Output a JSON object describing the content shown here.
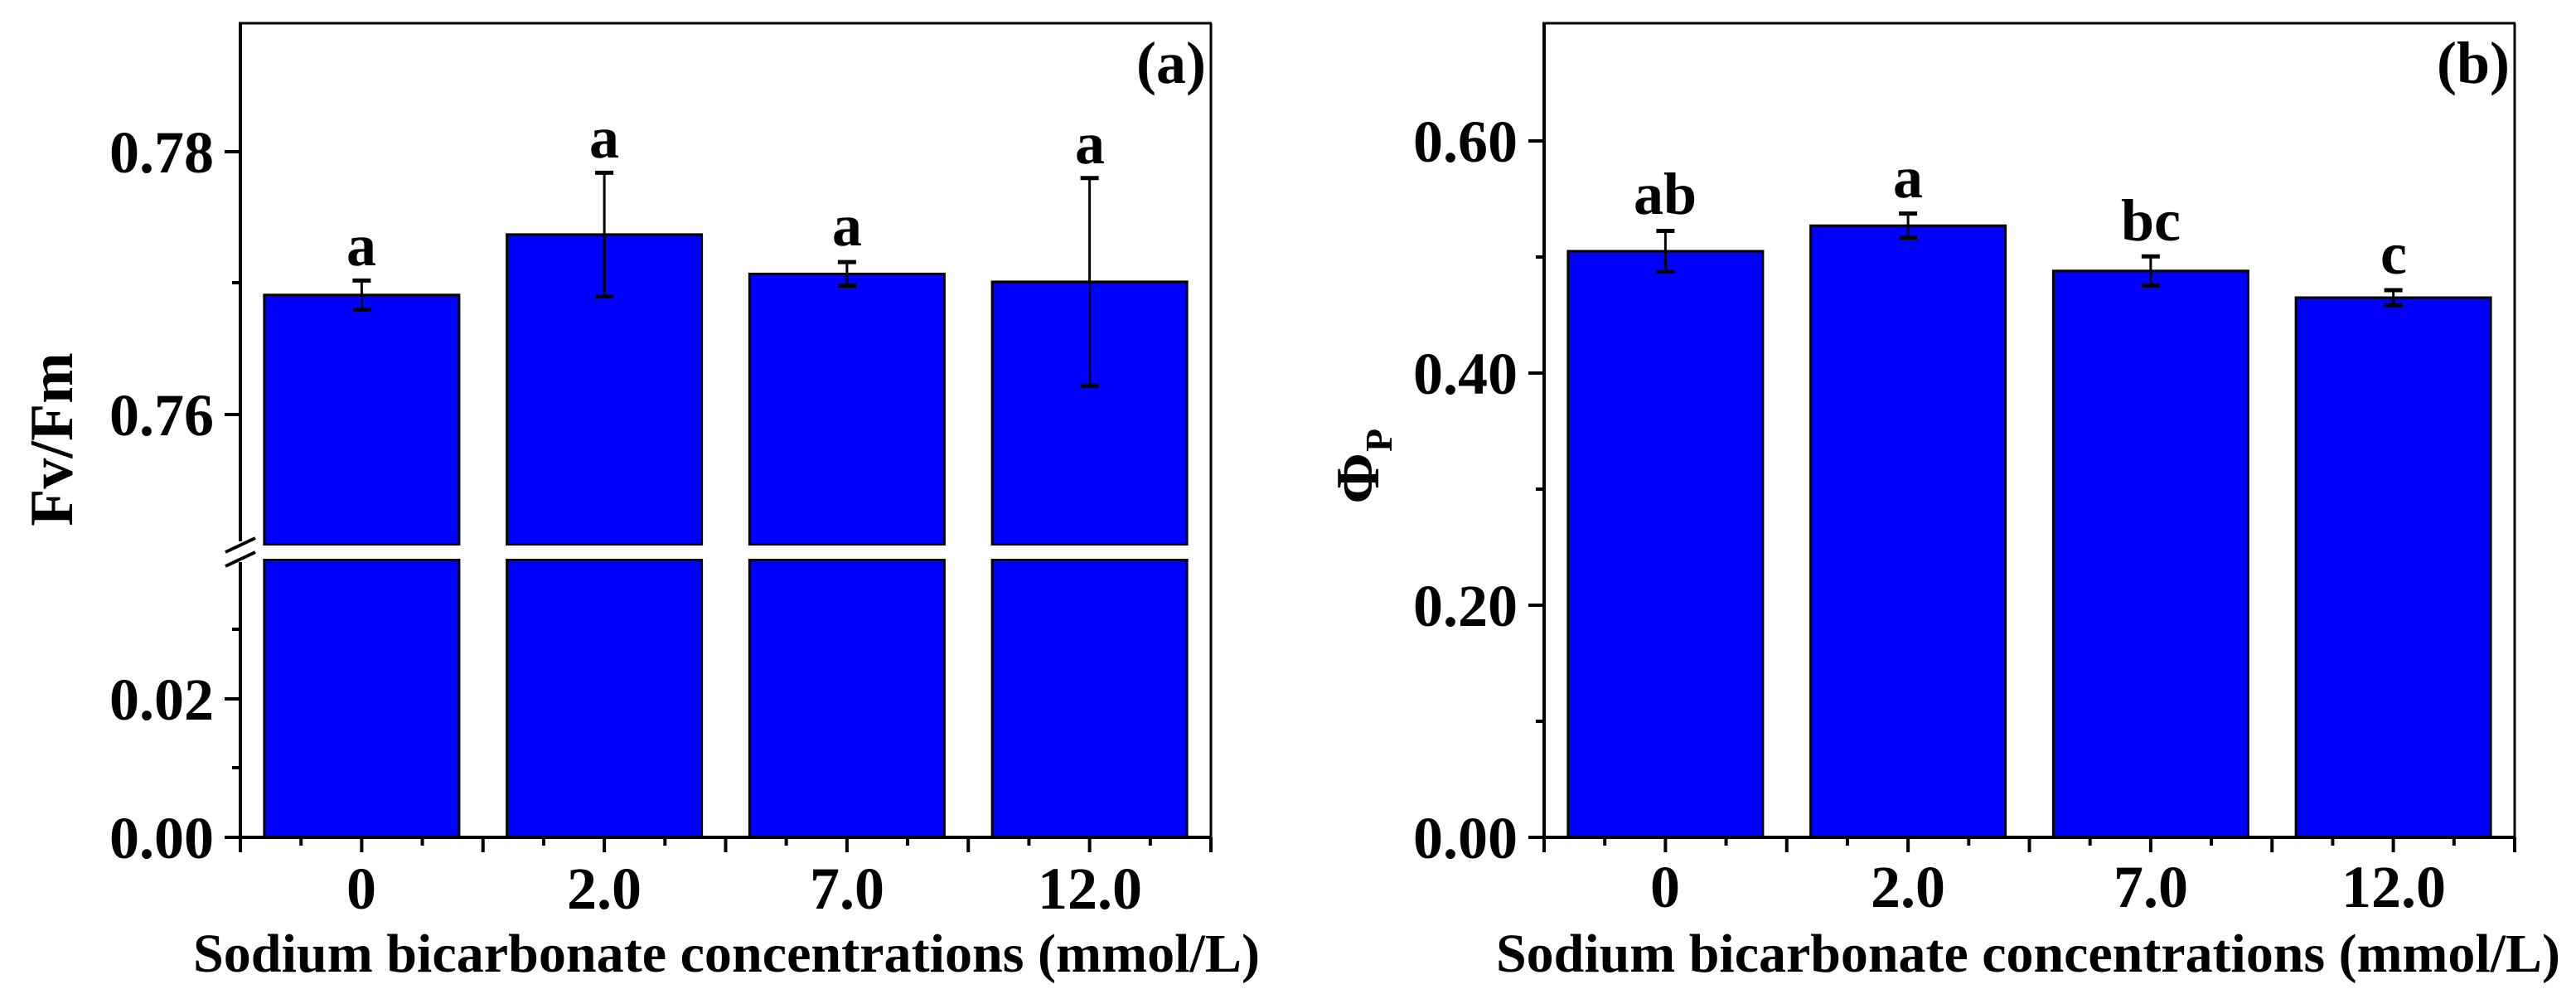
{
  "colors": {
    "bar_fill": "#0000FF",
    "axis": "#000000",
    "background": "#FFFFFF"
  },
  "chart_data": [
    {
      "panel": "(a)",
      "type": "bar",
      "categories": [
        "0",
        "2.0",
        "7.0",
        "12.0"
      ],
      "values": [
        0.7691,
        0.7737,
        0.7707,
        0.7701
      ],
      "errors": [
        0.0011,
        0.0047,
        0.0009,
        0.0079
      ],
      "significance": [
        "a",
        "a",
        "a",
        "a"
      ],
      "xlabel": "Sodium bicarbonate concentrations (mmol/L)",
      "ylabel": "Fv/Fm",
      "y_axis_break": {
        "lower_range": [
          0.0,
          0.04
        ],
        "upper_range": [
          0.75,
          0.79
        ]
      },
      "yticks_labeled": [
        "0.00",
        "0.02",
        "0.76",
        "0.78"
      ],
      "yticks_minor": [
        0.01,
        0.03,
        0.77
      ],
      "grid": false,
      "legend": null
    },
    {
      "panel": "(b)",
      "type": "bar",
      "categories": [
        "0",
        "2.0",
        "7.0",
        "12.0"
      ],
      "values": [
        0.505,
        0.527,
        0.488,
        0.465
      ],
      "errors": [
        0.0175,
        0.0104,
        0.0125,
        0.0064
      ],
      "significance": [
        "ab",
        "a",
        "bc",
        "c"
      ],
      "xlabel": "Sodium bicarbonate concentrations (mmol/L)",
      "ylabel": "ΦP",
      "ylim": [
        0.0,
        0.7
      ],
      "yticks_labeled": [
        "0.00",
        "0.20",
        "0.40",
        "0.60"
      ],
      "yticks_minor": [
        0.1,
        0.3,
        0.5
      ],
      "grid": false,
      "legend": null
    }
  ],
  "panel_a": {
    "tag": "(a)",
    "ylabel": "Fv/Fm",
    "xlabel": "Sodium bicarbonate concentrations (mmol/L)",
    "yticks": [
      "0.78",
      "0.76",
      "0.02",
      "0.00"
    ],
    "xticks": [
      "0",
      "2.0",
      "7.0",
      "12.0"
    ],
    "sig": [
      "a",
      "a",
      "a",
      "a"
    ]
  },
  "panel_b": {
    "tag": "(b)",
    "ylabel_main": "Φ",
    "ylabel_sub": "P",
    "xlabel": "Sodium bicarbonate concentrations (mmol/L)",
    "yticks": [
      "0.60",
      "0.40",
      "0.20",
      "0.00"
    ],
    "xticks": [
      "0",
      "2.0",
      "7.0",
      "12.0"
    ],
    "sig": [
      "ab",
      "a",
      "bc",
      "c"
    ]
  }
}
